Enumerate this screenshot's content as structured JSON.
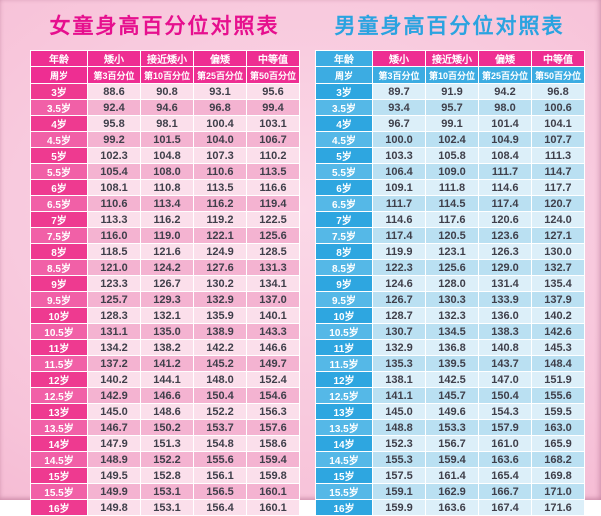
{
  "theme": {
    "page_bg": "#f7c3d9",
    "page_bg_light": "#fbd9e8",
    "girls_title": "#e60f8e",
    "boys_title": "#2ba3e0",
    "pink_header": "#ee2e92",
    "blue_header": "#3cace2",
    "pink_age_a": "#ee3a90",
    "pink_age_b": "#f160a7",
    "pink_row_a": "#fbdfeb",
    "pink_row_b": "#f4b3d1",
    "blue_age_a": "#2ea6e0",
    "blue_age_b": "#55b8e7",
    "blue_row_a": "#dceff9",
    "blue_row_b": "#bae0f2",
    "cell_text": "#3f3f4a"
  },
  "chart_data": [
    {
      "type": "table",
      "title": "女童身高百分位对照表",
      "columns_row1": [
        "年龄",
        "矮小",
        "接近矮小",
        "偏矮",
        "中等值"
      ],
      "columns_row2": [
        "周岁",
        "第3百分位",
        "第10百分位",
        "第25百分位",
        "第50百分位"
      ],
      "rows": [
        [
          "3岁",
          "88.6",
          "90.8",
          "93.1",
          "95.6"
        ],
        [
          "3.5岁",
          "92.4",
          "94.6",
          "96.8",
          "99.4"
        ],
        [
          "4岁",
          "95.8",
          "98.1",
          "100.4",
          "103.1"
        ],
        [
          "4.5岁",
          "99.2",
          "101.5",
          "104.0",
          "106.7"
        ],
        [
          "5岁",
          "102.3",
          "104.8",
          "107.3",
          "110.2"
        ],
        [
          "5.5岁",
          "105.4",
          "108.0",
          "110.6",
          "113.5"
        ],
        [
          "6岁",
          "108.1",
          "110.8",
          "113.5",
          "116.6"
        ],
        [
          "6.5岁",
          "110.6",
          "113.4",
          "116.2",
          "119.4"
        ],
        [
          "7岁",
          "113.3",
          "116.2",
          "119.2",
          "122.5"
        ],
        [
          "7.5岁",
          "116.0",
          "119.0",
          "122.1",
          "125.6"
        ],
        [
          "8岁",
          "118.5",
          "121.6",
          "124.9",
          "128.5"
        ],
        [
          "8.5岁",
          "121.0",
          "124.2",
          "127.6",
          "131.3"
        ],
        [
          "9岁",
          "123.3",
          "126.7",
          "130.2",
          "134.1"
        ],
        [
          "9.5岁",
          "125.7",
          "129.3",
          "132.9",
          "137.0"
        ],
        [
          "10岁",
          "128.3",
          "132.1",
          "135.9",
          "140.1"
        ],
        [
          "10.5岁",
          "131.1",
          "135.0",
          "138.9",
          "143.3"
        ],
        [
          "11岁",
          "134.2",
          "138.2",
          "142.2",
          "146.6"
        ],
        [
          "11.5岁",
          "137.2",
          "141.2",
          "145.2",
          "149.7"
        ],
        [
          "12岁",
          "140.2",
          "144.1",
          "148.0",
          "152.4"
        ],
        [
          "12.5岁",
          "142.9",
          "146.6",
          "150.4",
          "154.6"
        ],
        [
          "13岁",
          "145.0",
          "148.6",
          "152.2",
          "156.3"
        ],
        [
          "13.5岁",
          "146.7",
          "150.2",
          "153.7",
          "157.6"
        ],
        [
          "14岁",
          "147.9",
          "151.3",
          "154.8",
          "158.6"
        ],
        [
          "14.5岁",
          "148.9",
          "152.2",
          "155.6",
          "159.4"
        ],
        [
          "15岁",
          "149.5",
          "152.8",
          "156.1",
          "159.8"
        ],
        [
          "15.5岁",
          "149.9",
          "153.1",
          "156.5",
          "160.1"
        ],
        [
          "16岁",
          "149.8",
          "153.1",
          "156.4",
          "160.1"
        ]
      ]
    },
    {
      "type": "table",
      "title": "男童身高百分位对照表",
      "columns_row1": [
        "年龄",
        "矮小",
        "接近矮小",
        "偏矮",
        "中等值"
      ],
      "columns_row2": [
        "周岁",
        "第3百分位",
        "第10百分位",
        "第25百分位",
        "第50百分位"
      ],
      "rows": [
        [
          "3岁",
          "89.7",
          "91.9",
          "94.2",
          "96.8"
        ],
        [
          "3.5岁",
          "93.4",
          "95.7",
          "98.0",
          "100.6"
        ],
        [
          "4岁",
          "96.7",
          "99.1",
          "101.4",
          "104.1"
        ],
        [
          "4.5岁",
          "100.0",
          "102.4",
          "104.9",
          "107.7"
        ],
        [
          "5岁",
          "103.3",
          "105.8",
          "108.4",
          "111.3"
        ],
        [
          "5.5岁",
          "106.4",
          "109.0",
          "111.7",
          "114.7"
        ],
        [
          "6岁",
          "109.1",
          "111.8",
          "114.6",
          "117.7"
        ],
        [
          "6.5岁",
          "111.7",
          "114.5",
          "117.4",
          "120.7"
        ],
        [
          "7岁",
          "114.6",
          "117.6",
          "120.6",
          "124.0"
        ],
        [
          "7.5岁",
          "117.4",
          "120.5",
          "123.6",
          "127.1"
        ],
        [
          "8岁",
          "119.9",
          "123.1",
          "126.3",
          "130.0"
        ],
        [
          "8.5岁",
          "122.3",
          "125.6",
          "129.0",
          "132.7"
        ],
        [
          "9岁",
          "124.6",
          "128.0",
          "131.4",
          "135.4"
        ],
        [
          "9.5岁",
          "126.7",
          "130.3",
          "133.9",
          "137.9"
        ],
        [
          "10岁",
          "128.7",
          "132.3",
          "136.0",
          "140.2"
        ],
        [
          "10.5岁",
          "130.7",
          "134.5",
          "138.3",
          "142.6"
        ],
        [
          "11岁",
          "132.9",
          "136.8",
          "140.8",
          "145.3"
        ],
        [
          "11.5岁",
          "135.3",
          "139.5",
          "143.7",
          "148.4"
        ],
        [
          "12岁",
          "138.1",
          "142.5",
          "147.0",
          "151.9"
        ],
        [
          "12.5岁",
          "141.1",
          "145.7",
          "150.4",
          "155.6"
        ],
        [
          "13岁",
          "145.0",
          "149.6",
          "154.3",
          "159.5"
        ],
        [
          "13.5岁",
          "148.8",
          "153.3",
          "157.9",
          "163.0"
        ],
        [
          "14岁",
          "152.3",
          "156.7",
          "161.0",
          "165.9"
        ],
        [
          "14.5岁",
          "155.3",
          "159.4",
          "163.6",
          "168.2"
        ],
        [
          "15岁",
          "157.5",
          "161.4",
          "165.4",
          "169.8"
        ],
        [
          "15.5岁",
          "159.1",
          "162.9",
          "166.7",
          "171.0"
        ],
        [
          "16岁",
          "159.9",
          "163.6",
          "167.4",
          "171.6"
        ]
      ]
    }
  ]
}
